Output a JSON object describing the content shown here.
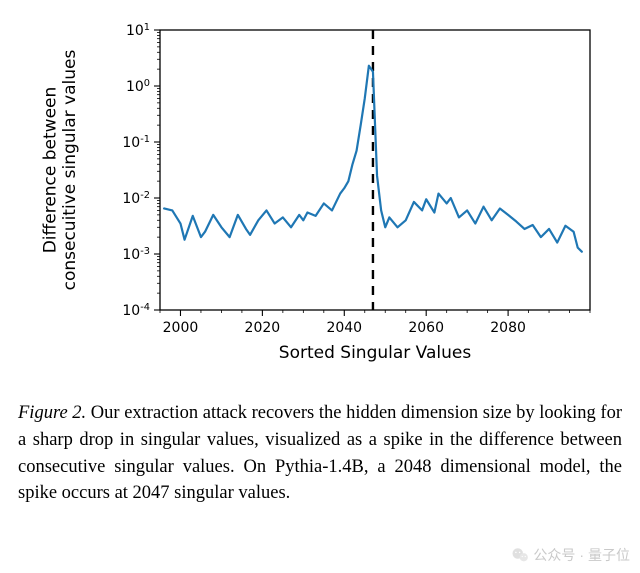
{
  "chart": {
    "type": "line",
    "xlabel": "Sorted Singular Values",
    "ylabel_line1": "Difference between",
    "ylabel_line2": "consecuitive singular values",
    "label_fontsize": 17,
    "tick_fontsize": 14,
    "xlim": [
      1995,
      2100
    ],
    "ylim": [
      0.0001,
      10.0
    ],
    "yscale": "log",
    "xtick_values": [
      2000,
      2020,
      2040,
      2060,
      2080
    ],
    "ytick_exponents": [
      -4,
      -3,
      -2,
      -1,
      0,
      1
    ],
    "line_color": "#1f77b4",
    "line_width": 2.2,
    "vline_x": 2047,
    "vline_style": "dashed",
    "vline_color": "#000000",
    "vline_width": 2.4,
    "background_color": "#ffffff",
    "spine_color": "#000000",
    "grid": false,
    "points": [
      [
        1996,
        0.0065
      ],
      [
        1998,
        0.006
      ],
      [
        2000,
        0.0035
      ],
      [
        2001,
        0.0018
      ],
      [
        2003,
        0.0048
      ],
      [
        2005,
        0.002
      ],
      [
        2006,
        0.0025
      ],
      [
        2008,
        0.005
      ],
      [
        2010,
        0.003
      ],
      [
        2012,
        0.002
      ],
      [
        2014,
        0.005
      ],
      [
        2016,
        0.0028
      ],
      [
        2017,
        0.0022
      ],
      [
        2019,
        0.004
      ],
      [
        2021,
        0.006
      ],
      [
        2023,
        0.0035
      ],
      [
        2025,
        0.0045
      ],
      [
        2027,
        0.003
      ],
      [
        2029,
        0.005
      ],
      [
        2030,
        0.004
      ],
      [
        2031,
        0.0055
      ],
      [
        2033,
        0.0048
      ],
      [
        2035,
        0.008
      ],
      [
        2037,
        0.006
      ],
      [
        2039,
        0.012
      ],
      [
        2040,
        0.015
      ],
      [
        2041,
        0.02
      ],
      [
        2042,
        0.04
      ],
      [
        2043,
        0.07
      ],
      [
        2044,
        0.2
      ],
      [
        2045,
        0.6
      ],
      [
        2046,
        2.3
      ],
      [
        2047,
        1.8
      ],
      [
        2048,
        0.025
      ],
      [
        2049,
        0.006
      ],
      [
        2050,
        0.003
      ],
      [
        2051,
        0.0045
      ],
      [
        2053,
        0.003
      ],
      [
        2055,
        0.004
      ],
      [
        2057,
        0.0085
      ],
      [
        2059,
        0.006
      ],
      [
        2060,
        0.0095
      ],
      [
        2062,
        0.0055
      ],
      [
        2063,
        0.012
      ],
      [
        2065,
        0.008
      ],
      [
        2066,
        0.01
      ],
      [
        2068,
        0.0045
      ],
      [
        2070,
        0.006
      ],
      [
        2072,
        0.0035
      ],
      [
        2074,
        0.007
      ],
      [
        2076,
        0.004
      ],
      [
        2078,
        0.0065
      ],
      [
        2080,
        0.005
      ],
      [
        2082,
        0.0038
      ],
      [
        2084,
        0.0028
      ],
      [
        2086,
        0.0033
      ],
      [
        2088,
        0.002
      ],
      [
        2090,
        0.0028
      ],
      [
        2092,
        0.0016
      ],
      [
        2094,
        0.0032
      ],
      [
        2096,
        0.0025
      ],
      [
        2097,
        0.0013
      ],
      [
        2098,
        0.0011
      ]
    ]
  },
  "caption": {
    "label": "Figure 2.",
    "text": "Our extraction attack recovers the hidden dimension size by looking for a sharp drop in singular values, visualized as a spike in the difference between consecutive singular values. On Pythia-1.4B, a 2048 dimensional model, the spike occurs at 2047 singular values."
  },
  "watermark": {
    "prefix": "公众号",
    "sep": "·",
    "name": "量子位"
  }
}
